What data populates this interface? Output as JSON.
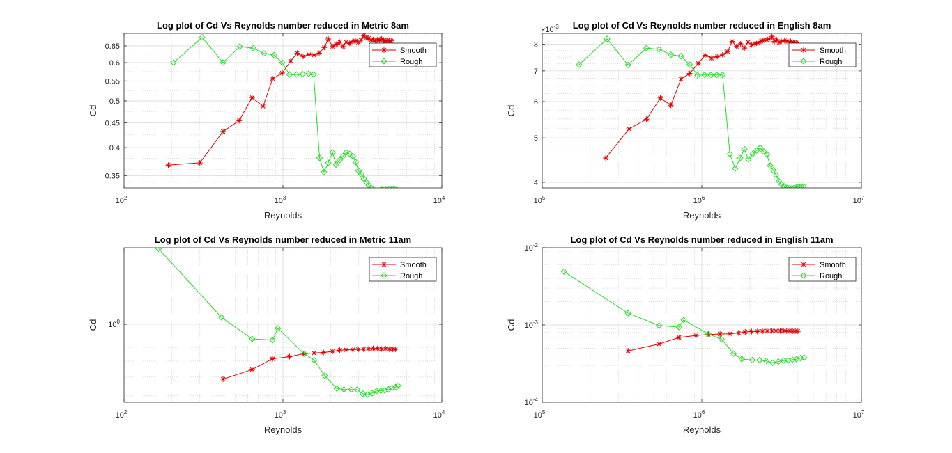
{
  "chart_data": [
    {
      "type": "line",
      "title": "Log plot of Cd Vs Reynolds number reduced in Metric 8am",
      "xlabel": "Reynolds",
      "ylabel": "Cd",
      "xscale": "log",
      "yscale": "log",
      "xlim": [
        100,
        10000
      ],
      "ylim": [
        0.33,
        0.69
      ],
      "xticks": [
        {
          "v": 100,
          "b": "10",
          "e": "2"
        },
        {
          "v": 1000,
          "b": "10",
          "e": "3"
        },
        {
          "v": 10000,
          "b": "10",
          "e": "4"
        }
      ],
      "yticks": [
        {
          "v": 0.35,
          "t": "0.35"
        },
        {
          "v": 0.4,
          "t": "0.4"
        },
        {
          "v": 0.45,
          "t": "0.45"
        },
        {
          "v": 0.5,
          "t": "0.5"
        },
        {
          "v": 0.55,
          "t": "0.55"
        },
        {
          "v": 0.6,
          "t": "0.6"
        },
        {
          "v": 0.65,
          "t": "0.65"
        }
      ],
      "grid": true,
      "minor_grid": true,
      "legend": "top-right",
      "series": [
        {
          "name": "Smooth",
          "color": "#e00000",
          "marker": "star",
          "x": [
            190,
            300,
            420,
            530,
            640,
            750,
            860,
            990,
            1120,
            1230,
            1340,
            1460,
            1570,
            1690,
            1820,
            1930,
            2050,
            2160,
            2280,
            2390,
            2500,
            2630,
            2750,
            2860,
            2980,
            3100,
            3220,
            3340,
            3460,
            3580,
            3700,
            3820,
            3940,
            4060,
            4180,
            4300,
            4420,
            4560,
            4680,
            4800
          ],
          "y": [
            0.368,
            0.372,
            0.432,
            0.455,
            0.508,
            0.487,
            0.556,
            0.571,
            0.605,
            0.628,
            0.618,
            0.624,
            0.622,
            0.628,
            0.645,
            0.672,
            0.648,
            0.655,
            0.662,
            0.648,
            0.662,
            0.658,
            0.664,
            0.666,
            0.661,
            0.668,
            0.683,
            0.676,
            0.674,
            0.668,
            0.67,
            0.665,
            0.67,
            0.668,
            0.672,
            0.667,
            0.664,
            0.668,
            0.662,
            0.666
          ]
        },
        {
          "name": "Rough",
          "color": "#22dd22",
          "marker": "diamond",
          "x": [
            205,
            310,
            420,
            535,
            650,
            760,
            880,
            990,
            1100,
            1220,
            1330,
            1450,
            1560,
            1700,
            1810,
            1930,
            2050,
            2160,
            2280,
            2390,
            2500,
            2630,
            2750,
            2870,
            2990,
            3110,
            3230,
            3350,
            3470,
            3590,
            3710,
            3830,
            3950,
            4070,
            4190,
            4310,
            4430,
            4560,
            4680,
            4800,
            5000,
            5200
          ],
          "y": [
            0.6,
            0.677,
            0.6,
            0.648,
            0.643,
            0.627,
            0.622,
            0.6,
            0.567,
            0.567,
            0.568,
            0.569,
            0.567,
            0.381,
            0.356,
            0.372,
            0.391,
            0.369,
            0.377,
            0.384,
            0.391,
            0.388,
            0.384,
            0.373,
            0.358,
            0.352,
            0.345,
            0.339,
            0.334,
            0.33,
            0.327,
            0.326,
            0.325,
            0.326,
            0.327,
            0.326,
            0.327,
            0.326,
            0.328,
            0.327,
            0.328,
            0.327
          ]
        }
      ]
    },
    {
      "type": "line",
      "title": "Log plot of Cd Vs Reynolds number reduced in English 8am",
      "xlabel": "Reynolds",
      "ylabel": "Cd",
      "xscale": "log",
      "yscale": "log",
      "xlim": [
        100000,
        10000000
      ],
      "ylim": [
        0.00389,
        0.00845
      ],
      "exponent_label": "×10",
      "exponent_value": "-3",
      "xticks": [
        {
          "v": 100000,
          "b": "10",
          "e": "5"
        },
        {
          "v": 1000000,
          "b": "10",
          "e": "6"
        },
        {
          "v": 10000000,
          "b": "10",
          "e": "7"
        }
      ],
      "yticks": [
        {
          "v": 0.004,
          "t": "4"
        },
        {
          "v": 0.005,
          "t": "5"
        },
        {
          "v": 0.006,
          "t": "6"
        },
        {
          "v": 0.007,
          "t": "7"
        },
        {
          "v": 0.008,
          "t": "8"
        }
      ],
      "grid": true,
      "minor_grid": true,
      "legend": "top-right",
      "series": [
        {
          "name": "Smooth",
          "color": "#e00000",
          "marker": "star",
          "x": [
            250000,
            350000,
            450000,
            550000,
            640000,
            740000,
            840000,
            950000,
            1050000,
            1150000,
            1250000,
            1350000,
            1450000,
            1550000,
            1650000,
            1750000,
            1850000,
            1950000,
            2050000,
            2150000,
            2250000,
            2350000,
            2450000,
            2550000,
            2650000,
            2750000,
            2850000,
            2950000,
            3050000,
            3150000,
            3300000,
            3450000,
            3600000,
            3750000,
            3900000
          ],
          "y": [
            0.00452,
            0.00523,
            0.00549,
            0.00611,
            0.00589,
            0.00672,
            0.00691,
            0.00727,
            0.00757,
            0.00746,
            0.00752,
            0.00759,
            0.00771,
            0.00812,
            0.00791,
            0.00802,
            0.00785,
            0.00809,
            0.00798,
            0.00802,
            0.00806,
            0.00812,
            0.00817,
            0.00818,
            0.00822,
            0.00831,
            0.00812,
            0.00818,
            0.00808,
            0.00812,
            0.00815,
            0.00811,
            0.00812,
            0.00808,
            0.00806
          ]
        },
        {
          "name": "Rough",
          "color": "#22dd22",
          "marker": "diamond",
          "x": [
            170000,
            255000,
            345000,
            450000,
            540000,
            640000,
            740000,
            840000,
            940000,
            1040000,
            1140000,
            1240000,
            1350000,
            1500000,
            1620000,
            1740000,
            1850000,
            1960000,
            2080000,
            2200000,
            2320000,
            2440000,
            2560000,
            2680000,
            2800000,
            2920000,
            3040000,
            3160000,
            3280000,
            3400000,
            3530000,
            3660000,
            3790000,
            3920000,
            4050000,
            4200000,
            4350000
          ],
          "y": [
            0.00722,
            0.00822,
            0.00721,
            0.00785,
            0.0078,
            0.00759,
            0.00754,
            0.00722,
            0.00685,
            0.00686,
            0.00686,
            0.00686,
            0.00686,
            0.00461,
            0.00429,
            0.00452,
            0.00472,
            0.00449,
            0.00461,
            0.00469,
            0.00476,
            0.00467,
            0.0046,
            0.00435,
            0.00425,
            0.00415,
            0.00402,
            0.00396,
            0.00392,
            0.00389,
            0.00388,
            0.00388,
            0.00389,
            0.0039,
            0.00391,
            0.00392,
            0.00392
          ]
        }
      ]
    },
    {
      "type": "line",
      "title": "Log plot of Cd Vs Reynolds number reduced in Metric 11am",
      "xlabel": "Reynolds",
      "ylabel": "Cd",
      "xscale": "log",
      "yscale": "log",
      "xlim": [
        100,
        10000
      ],
      "ylim": [
        0.47,
        2.1
      ],
      "xticks": [
        {
          "v": 100,
          "b": "10",
          "e": "2"
        },
        {
          "v": 1000,
          "b": "10",
          "e": "3"
        },
        {
          "v": 10000,
          "b": "10",
          "e": "4"
        }
      ],
      "yticks": [
        {
          "v": 1,
          "b": "10",
          "e": "0"
        }
      ],
      "grid": true,
      "minor_grid": true,
      "legend": "top-right",
      "series": [
        {
          "name": "Smooth",
          "color": "#e00000",
          "marker": "star",
          "x": [
            420,
            640,
            860,
            1100,
            1350,
            1570,
            1800,
            2050,
            2280,
            2500,
            2750,
            2980,
            3220,
            3460,
            3700,
            3940,
            4180,
            4420,
            4680,
            4900,
            5100
          ],
          "y": [
            0.588,
            0.645,
            0.716,
            0.731,
            0.752,
            0.757,
            0.761,
            0.769,
            0.779,
            0.781,
            0.782,
            0.784,
            0.786,
            0.788,
            0.792,
            0.791,
            0.787,
            0.79,
            0.786,
            0.785,
            0.785
          ]
        },
        {
          "name": "Rough",
          "color": "#22dd22",
          "marker": "diamond",
          "x": [
            165,
            410,
            640,
            860,
            930,
            1360,
            1570,
            1830,
            2180,
            2420,
            2690,
            2930,
            3180,
            3400,
            3640,
            3880,
            4130,
            4370,
            4620,
            4860,
            5120,
            5300
          ],
          "y": [
            2.08,
            1.07,
            0.868,
            0.858,
            0.962,
            0.752,
            0.707,
            0.608,
            0.537,
            0.532,
            0.531,
            0.531,
            0.51,
            0.506,
            0.513,
            0.524,
            0.525,
            0.527,
            0.532,
            0.54,
            0.544,
            0.552
          ]
        }
      ]
    },
    {
      "type": "line",
      "title": "Log plot of Cd Vs Reynolds number reduced in English 11am",
      "xlabel": "Reynolds",
      "ylabel": "Cd",
      "xscale": "log",
      "yscale": "log",
      "xlim": [
        100000,
        10000000
      ],
      "ylim": [
        0.0001,
        0.01
      ],
      "xticks": [
        {
          "v": 100000,
          "b": "10",
          "e": "5"
        },
        {
          "v": 1000000,
          "b": "10",
          "e": "6"
        },
        {
          "v": 10000000,
          "b": "10",
          "e": "7"
        }
      ],
      "yticks": [
        {
          "v": 0.0001,
          "b": "10",
          "e": "-4"
        },
        {
          "v": 0.001,
          "b": "10",
          "e": "-3"
        },
        {
          "v": 0.01,
          "b": "10",
          "e": "-2"
        }
      ],
      "grid": true,
      "minor_grid": true,
      "legend": "top-right",
      "series": [
        {
          "name": "Smooth",
          "color": "#e00000",
          "marker": "star",
          "x": [
            345000,
            540000,
            720000,
            920000,
            1100000,
            1300000,
            1500000,
            1700000,
            1870000,
            2050000,
            2230000,
            2400000,
            2570000,
            2750000,
            2920000,
            3100000,
            3250000,
            3400000,
            3550000,
            3700000,
            3850000,
            4000000
          ],
          "y": [
            0.000462,
            0.000566,
            0.000689,
            0.000731,
            0.000752,
            0.000764,
            0.000768,
            0.000789,
            0.000812,
            0.000821,
            0.000824,
            0.000831,
            0.000837,
            0.000841,
            0.000842,
            0.000839,
            0.000842,
            0.000837,
            0.000839,
            0.000829,
            0.000831,
            0.000828
          ]
        },
        {
          "name": "Rough",
          "color": "#22dd22",
          "marker": "diamond",
          "x": [
            137000,
            345000,
            540000,
            720000,
            770000,
            1100000,
            1330000,
            1580000,
            1780000,
            2070000,
            2300000,
            2540000,
            2780000,
            3020000,
            3250000,
            3470000,
            3700000,
            3920000,
            4150000,
            4370000
          ],
          "y": [
            0.00491,
            0.00142,
            0.000982,
            0.000938,
            0.00116,
            0.000762,
            0.000652,
            0.000427,
            0.000362,
            0.000352,
            0.000351,
            0.000342,
            0.000324,
            0.000336,
            0.000346,
            0.000349,
            0.000355,
            0.000361,
            0.000372,
            0.000378
          ]
        }
      ]
    }
  ]
}
